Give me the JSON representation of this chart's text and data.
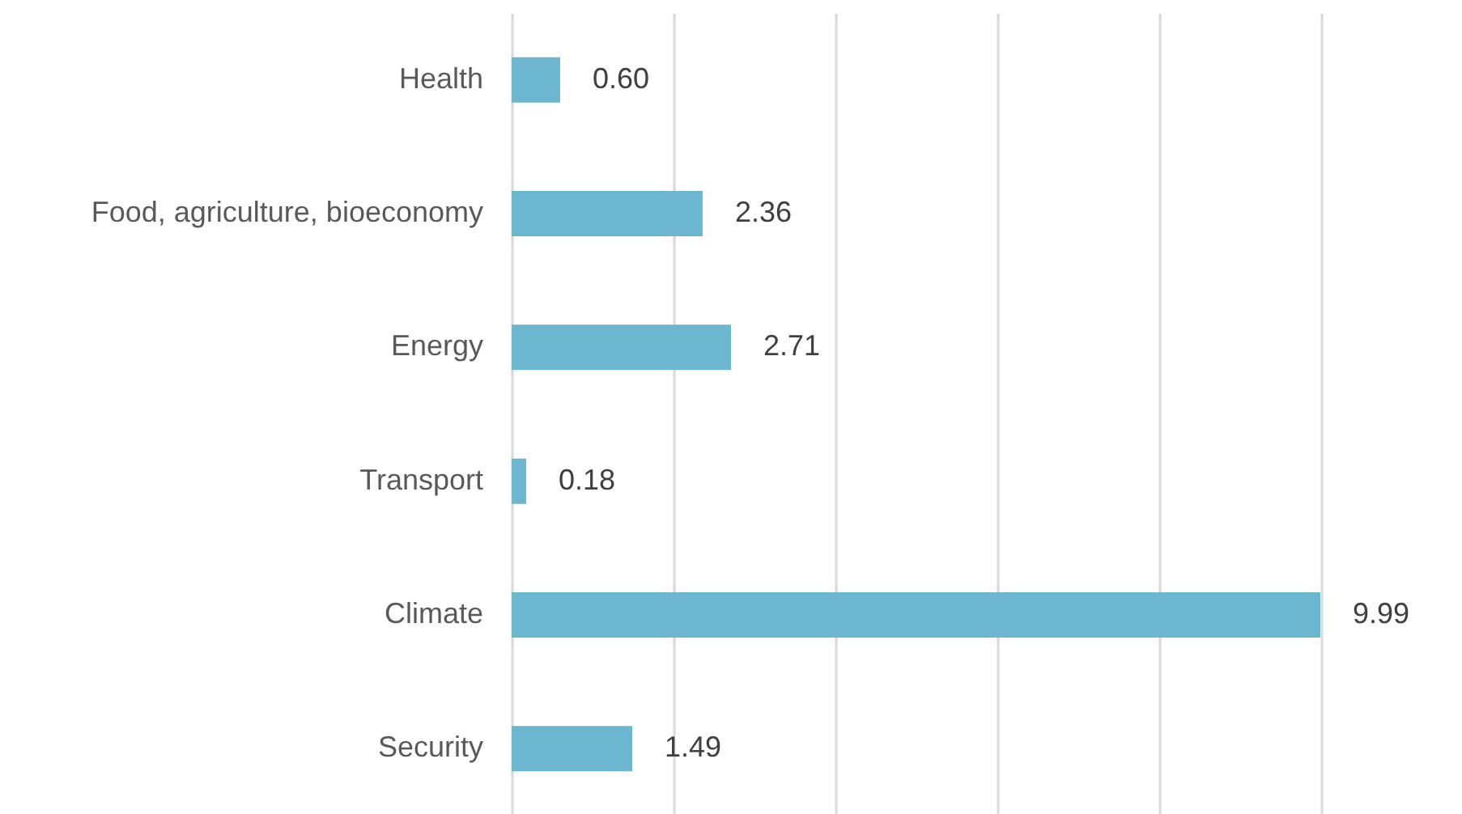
{
  "chart_data": {
    "type": "bar",
    "orientation": "horizontal",
    "categories": [
      "Health",
      "Food, agriculture, bioeconomy",
      "Energy",
      "Transport",
      "Climate",
      "Security"
    ],
    "values": [
      0.6,
      2.36,
      2.71,
      0.18,
      9.99,
      1.49
    ],
    "color": "#6cb6d0",
    "xlim": [
      0,
      10
    ],
    "xticks": [
      {
        "value": 0,
        "label": null
      },
      {
        "value": 2,
        "label": null
      },
      {
        "value": 4,
        "label": null
      },
      {
        "value": 6,
        "label": null
      },
      {
        "value": 8,
        "label": null
      },
      {
        "value": 10,
        "label": null
      }
    ],
    "value_labels": [
      "0.60",
      "2.36",
      "2.71",
      "0.18",
      "9.99",
      "1.49"
    ],
    "grid": "x",
    "tick_labels": "y"
  }
}
